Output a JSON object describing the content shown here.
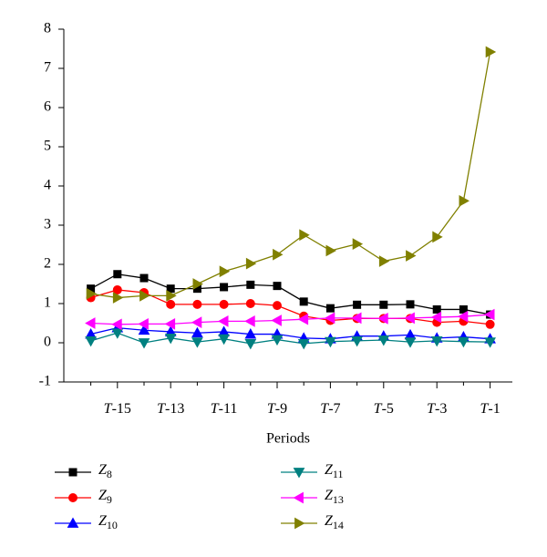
{
  "chart_data": {
    "type": "line",
    "x_label": "Periods",
    "categories": [
      null,
      "T-15",
      null,
      "T-13",
      null,
      "T-11",
      null,
      "T-9",
      null,
      "T-7",
      null,
      "T-5",
      null,
      "T-3",
      null,
      "T-1"
    ],
    "ylim": [
      -1,
      8
    ],
    "yticks": [
      -1,
      0,
      1,
      2,
      3,
      4,
      5,
      6,
      7,
      8
    ],
    "series": [
      {
        "name": "Z8",
        "color": "#000000",
        "marker": "square",
        "values": [
          1.38,
          1.75,
          1.65,
          1.38,
          1.38,
          1.42,
          1.48,
          1.45,
          1.05,
          0.88,
          0.97,
          0.97,
          0.98,
          0.85,
          0.85,
          0.72
        ]
      },
      {
        "name": "Z9",
        "color": "#ff0000",
        "marker": "circle",
        "values": [
          1.15,
          1.35,
          1.28,
          0.98,
          0.98,
          0.98,
          1.0,
          0.95,
          0.68,
          0.57,
          0.62,
          0.62,
          0.62,
          0.52,
          0.55,
          0.47
        ]
      },
      {
        "name": "Z10",
        "color": "#0000ff",
        "marker": "triangle-up",
        "values": [
          0.22,
          0.38,
          0.32,
          0.28,
          0.25,
          0.28,
          0.22,
          0.22,
          0.12,
          0.1,
          0.17,
          0.17,
          0.2,
          0.12,
          0.15,
          0.1
        ]
      },
      {
        "name": "Z11",
        "color": "#008080",
        "marker": "triangle-down",
        "values": [
          0.05,
          0.25,
          0.0,
          0.12,
          0.02,
          0.1,
          -0.02,
          0.08,
          -0.02,
          0.03,
          0.05,
          0.07,
          0.02,
          0.05,
          0.03,
          0.02
        ]
      },
      {
        "name": "Z13",
        "color": "#ff00ff",
        "marker": "triangle-left",
        "values": [
          0.5,
          0.47,
          0.48,
          0.48,
          0.52,
          0.55,
          0.55,
          0.57,
          0.6,
          0.63,
          0.63,
          0.62,
          0.63,
          0.65,
          0.67,
          0.72
        ]
      },
      {
        "name": "Z14",
        "color": "#808000",
        "marker": "triangle-right",
        "values": [
          1.25,
          1.15,
          1.2,
          1.2,
          1.5,
          1.82,
          2.02,
          2.25,
          2.75,
          2.35,
          2.52,
          2.08,
          2.22,
          2.7,
          3.62,
          7.42
        ]
      }
    ]
  }
}
